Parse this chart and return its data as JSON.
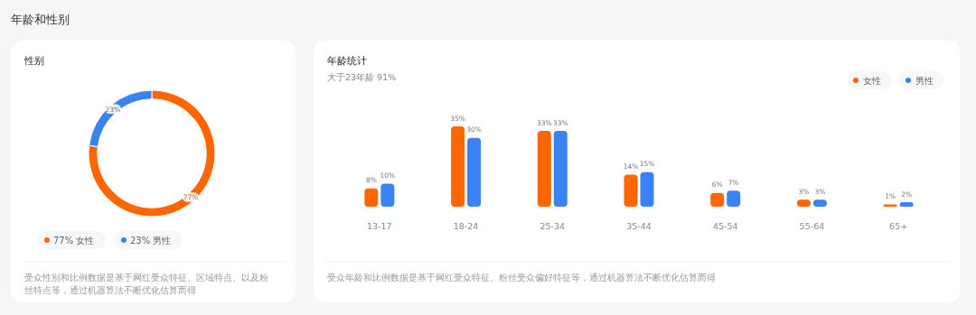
{
  "chart_data": [
    {
      "type": "donut",
      "title": "性别",
      "annotations": [
        "年龄和性别",
        "受众性别和比例数据是基于网红受众特征、区域特点、以及粉丝特点等，通过机器算法不断优化估算而得"
      ],
      "categories": [
        "女性",
        "男性"
      ],
      "values": [
        77,
        23
      ],
      "colors": [
        "#ff6600",
        "#3b82f6"
      ],
      "value_labels": [
        "77%",
        "23%"
      ],
      "legend": "bottom"
    },
    {
      "type": "bar",
      "title": "年龄统计",
      "subtitle": "大于23年龄 91%",
      "annotations": [
        "受众年龄和比例数据是基于网红受众特征、粉丝受众偏好特征等，通过机器算法不断优化估算而得"
      ],
      "categories": [
        "13-17",
        "18-24",
        "25-34",
        "35-44",
        "45-54",
        "55-64",
        "65+"
      ],
      "series": [
        {
          "name": "女性",
          "color": "#ff6600",
          "values": [
            8,
            35,
            33,
            14,
            6,
            3,
            1
          ],
          "value_labels": [
            "8%",
            "35%",
            "33%",
            "14%",
            "6%",
            "3%",
            "1%"
          ]
        },
        {
          "name": "男性",
          "color": "#3b82f6",
          "values": [
            10,
            30,
            33,
            15,
            7,
            3,
            2
          ],
          "value_labels": [
            "10%",
            "30%",
            "33%",
            "15%",
            "7%",
            "3%",
            "2%"
          ]
        }
      ],
      "legend": "top right"
    }
  ]
}
